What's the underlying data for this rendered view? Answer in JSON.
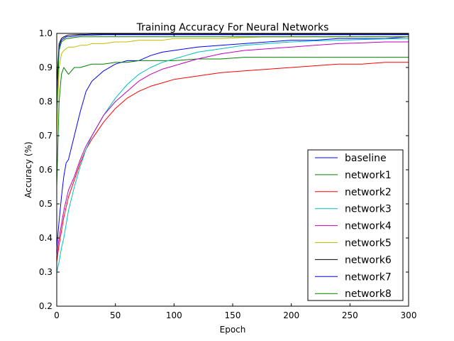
{
  "chart_data": {
    "type": "line",
    "title": "Training Accuracy For Neural Networks",
    "xlabel": "Epoch",
    "ylabel": "Accuracy (%)",
    "xlim": [
      0,
      300
    ],
    "ylim": [
      0.2,
      1.0
    ],
    "x_ticks": [
      0,
      50,
      100,
      150,
      200,
      250,
      300
    ],
    "y_ticks": [
      0.2,
      0.3,
      0.4,
      0.5,
      0.6,
      0.7,
      0.8,
      0.9,
      1.0
    ],
    "grid": false,
    "legend_position": "lower-right",
    "x": [
      0,
      2,
      4,
      6,
      8,
      10,
      15,
      20,
      25,
      30,
      40,
      50,
      60,
      70,
      80,
      90,
      100,
      120,
      140,
      160,
      180,
      200,
      220,
      240,
      260,
      280,
      300
    ],
    "series": [
      {
        "name": "baseline",
        "color": "#0000ff",
        "values": [
          0.37,
          0.45,
          0.52,
          0.58,
          0.62,
          0.63,
          0.7,
          0.77,
          0.83,
          0.86,
          0.89,
          0.91,
          0.92,
          0.92,
          0.935,
          0.945,
          0.95,
          0.96,
          0.965,
          0.97,
          0.975,
          0.98,
          0.98,
          0.985,
          0.985,
          0.985,
          0.99
        ]
      },
      {
        "name": "network1",
        "color": "#008000",
        "values": [
          0.55,
          0.8,
          0.88,
          0.9,
          0.89,
          0.88,
          0.9,
          0.9,
          0.905,
          0.91,
          0.91,
          0.915,
          0.915,
          0.92,
          0.92,
          0.92,
          0.92,
          0.925,
          0.925,
          0.93,
          0.93,
          0.93,
          0.93,
          0.93,
          0.93,
          0.93,
          0.93
        ]
      },
      {
        "name": "network2",
        "color": "#ff0000",
        "values": [
          0.33,
          0.38,
          0.42,
          0.46,
          0.49,
          0.52,
          0.57,
          0.62,
          0.66,
          0.69,
          0.74,
          0.78,
          0.81,
          0.83,
          0.845,
          0.855,
          0.865,
          0.875,
          0.885,
          0.89,
          0.895,
          0.9,
          0.905,
          0.91,
          0.91,
          0.915,
          0.915
        ]
      },
      {
        "name": "network3",
        "color": "#00bfbf",
        "values": [
          0.3,
          0.33,
          0.37,
          0.4,
          0.44,
          0.48,
          0.55,
          0.61,
          0.66,
          0.7,
          0.76,
          0.81,
          0.85,
          0.88,
          0.9,
          0.915,
          0.925,
          0.945,
          0.955,
          0.965,
          0.97,
          0.975,
          0.978,
          0.98,
          0.982,
          0.984,
          0.985
        ]
      },
      {
        "name": "network4",
        "color": "#bf00bf",
        "values": [
          0.35,
          0.4,
          0.44,
          0.48,
          0.51,
          0.54,
          0.58,
          0.63,
          0.67,
          0.7,
          0.76,
          0.8,
          0.83,
          0.86,
          0.88,
          0.895,
          0.905,
          0.925,
          0.94,
          0.95,
          0.955,
          0.96,
          0.965,
          0.97,
          0.972,
          0.975,
          0.975
        ]
      },
      {
        "name": "network5",
        "color": "#bfbf00",
        "values": [
          0.7,
          0.9,
          0.94,
          0.95,
          0.955,
          0.96,
          0.96,
          0.965,
          0.965,
          0.97,
          0.97,
          0.975,
          0.975,
          0.98,
          0.98,
          0.98,
          0.985,
          0.985,
          0.985,
          0.988,
          0.99,
          0.99,
          0.99,
          0.99,
          0.99,
          0.99,
          0.99
        ]
      },
      {
        "name": "network6",
        "color": "#000000",
        "values": [
          0.85,
          0.97,
          0.985,
          0.99,
          0.993,
          0.995,
          0.996,
          0.997,
          0.997,
          0.998,
          0.998,
          0.998,
          0.998,
          0.998,
          0.998,
          0.998,
          0.998,
          0.998,
          0.998,
          0.998,
          0.998,
          0.998,
          0.998,
          0.998,
          0.998,
          0.998,
          0.998
        ]
      },
      {
        "name": "network7",
        "color": "#0000ff",
        "values": [
          0.8,
          0.96,
          0.98,
          0.985,
          0.99,
          0.99,
          0.992,
          0.994,
          0.995,
          0.995,
          0.996,
          0.996,
          0.996,
          0.996,
          0.996,
          0.996,
          0.996,
          0.996,
          0.996,
          0.996,
          0.996,
          0.996,
          0.996,
          0.996,
          0.996,
          0.996,
          0.996
        ]
      },
      {
        "name": "network8",
        "color": "#008000",
        "values": [
          0.78,
          0.95,
          0.975,
          0.98,
          0.985,
          0.985,
          0.988,
          0.99,
          0.99,
          0.99,
          0.99,
          0.99,
          0.99,
          0.99,
          0.99,
          0.99,
          0.99,
          0.99,
          0.99,
          0.99,
          0.99,
          0.99,
          0.99,
          0.99,
          0.99,
          0.99,
          0.99
        ]
      }
    ]
  }
}
